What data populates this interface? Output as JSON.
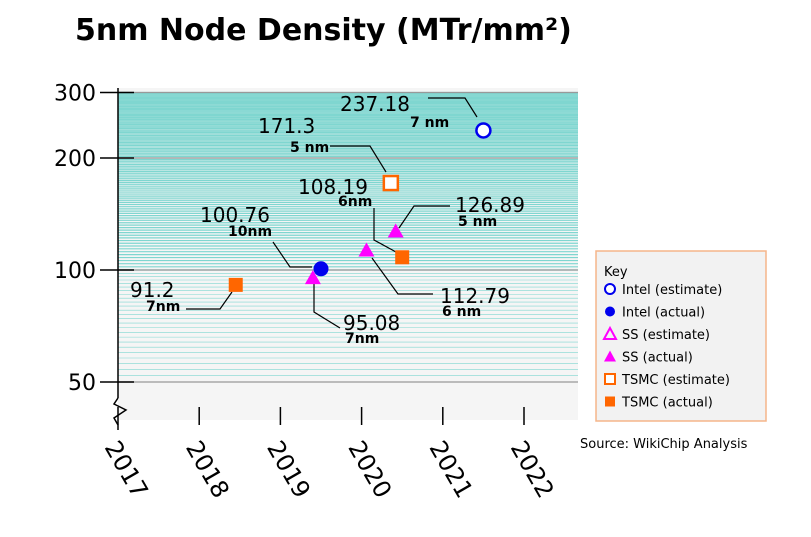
{
  "chart_data": {
    "type": "scatter",
    "title": "5nm Node Density (MTr/mm²)",
    "y_scale": "log",
    "ylim": [
      50,
      300
    ],
    "xlim": [
      2017,
      2022.67
    ],
    "y_ticks": [
      "300",
      "200",
      "100",
      "50"
    ],
    "y_tick_values": [
      300,
      200,
      100,
      50
    ],
    "x_ticks": [
      "2017",
      "2018",
      "2019",
      "2020",
      "2021",
      "2022"
    ],
    "x_tick_values": [
      2017,
      2018,
      2019,
      2020,
      2021,
      2022
    ],
    "grid": true,
    "legend_title": "Key",
    "legend_placement": "right",
    "source": "Source: WikiChip Analysis",
    "series": [
      {
        "name": "Intel (estimate)",
        "marker": "circle-open",
        "color": "#0000ee",
        "points": [
          {
            "x": 2021.5,
            "y": 237.18,
            "label": "237.18",
            "node": "7 nm"
          }
        ]
      },
      {
        "name": "Intel (actual)",
        "marker": "circle",
        "color": "#0000ee",
        "points": [
          {
            "x": 2019.5,
            "y": 100.76,
            "label": "100.76",
            "node": "10nm"
          }
        ]
      },
      {
        "name": "SS (estimate)",
        "marker": "triangle-open",
        "color": "#ff00ff",
        "points": []
      },
      {
        "name": "SS (actual)",
        "marker": "triangle",
        "color": "#ff00ff",
        "points": [
          {
            "x": 2019.4,
            "y": 95.08,
            "label": "95.08",
            "node": "7nm"
          },
          {
            "x": 2020.06,
            "y": 112.79,
            "label": "112.79",
            "node": "6 nm"
          },
          {
            "x": 2020.42,
            "y": 126.89,
            "label": "126.89",
            "node": "5 nm"
          }
        ]
      },
      {
        "name": "TSMC (estimate)",
        "marker": "square-open",
        "color": "#ff6600",
        "points": [
          {
            "x": 2020.36,
            "y": 171.3,
            "label": "171.3",
            "node": "5 nm"
          }
        ]
      },
      {
        "name": "TSMC (actual)",
        "marker": "square",
        "color": "#ff6600",
        "points": [
          {
            "x": 2018.45,
            "y": 91.2,
            "label": "91.2",
            "node": "7nm"
          },
          {
            "x": 2020.5,
            "y": 108.19,
            "label": "108.19",
            "node": "6nm"
          }
        ]
      }
    ]
  }
}
